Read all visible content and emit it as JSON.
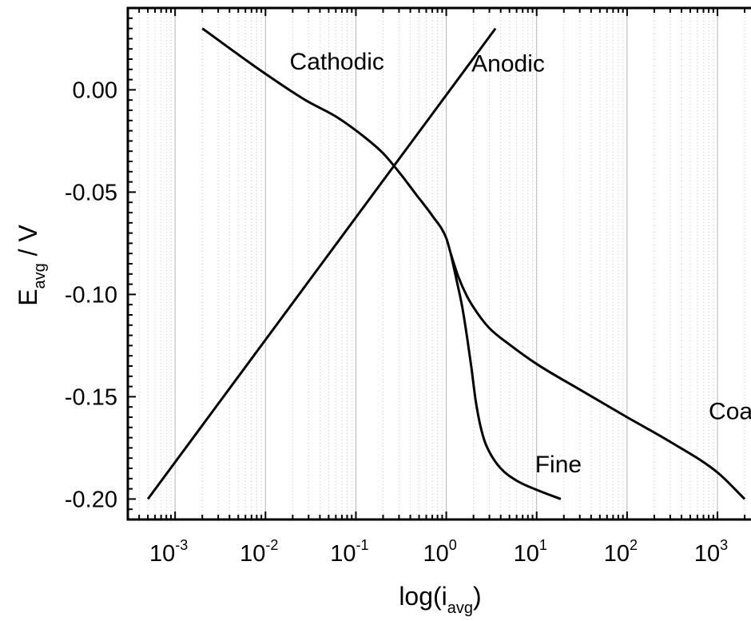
{
  "chart_data": {
    "type": "line",
    "xscale": "log",
    "xlim": [
      0.0003,
      3000
    ],
    "ylim": [
      -0.21,
      0.04
    ],
    "grid": "vertical, major solid and minor dotted",
    "x_major_ticks": [
      {
        "value": 0.001,
        "base": "10",
        "exp": "-3"
      },
      {
        "value": 0.01,
        "base": "10",
        "exp": "-2"
      },
      {
        "value": 0.1,
        "base": "10",
        "exp": "-1"
      },
      {
        "value": 1,
        "base": "10",
        "exp": "0"
      },
      {
        "value": 10,
        "base": "10",
        "exp": "1"
      },
      {
        "value": 100,
        "base": "10",
        "exp": "2"
      },
      {
        "value": 1000,
        "base": "10",
        "exp": "3"
      }
    ],
    "y_ticks": [
      {
        "value": 0.0,
        "label": "0.00"
      },
      {
        "value": -0.05,
        "label": "-0.05"
      },
      {
        "value": -0.1,
        "label": "-0.10"
      },
      {
        "value": -0.15,
        "label": "-0.15"
      },
      {
        "value": -0.2,
        "label": "-0.20"
      }
    ],
    "xlabel": {
      "main": "log(i",
      "sub": "avg",
      "end": ")"
    },
    "ylabel": {
      "main": "E",
      "sub": "avg",
      "end": " / V"
    },
    "series": [
      {
        "name": "Anodic",
        "label_at": [
          1.9,
          0.009
        ],
        "x": [
          0.0005,
          3.5
        ],
        "y": [
          -0.2,
          0.03
        ]
      },
      {
        "name": "Cathodic",
        "label_at": [
          0.0185,
          0.01
        ],
        "x": [
          0.002,
          0.0095,
          0.0276,
          0.0625,
          0.128,
          0.2,
          0.31,
          0.47,
          0.7,
          1.0,
          1.12
        ],
        "y": [
          0.03,
          0.0085,
          -0.005,
          -0.0135,
          -0.0235,
          -0.031,
          -0.041,
          -0.0515,
          -0.0615,
          -0.0725,
          -0.08
        ]
      },
      {
        "name": "Coarse",
        "label_at": [
          800,
          -0.161
        ],
        "x": [
          1.12,
          1.35,
          1.7,
          2.2,
          3.0,
          5.0,
          10,
          30,
          100,
          300,
          1000,
          2000
        ],
        "y": [
          -0.08,
          -0.091,
          -0.101,
          -0.109,
          -0.1165,
          -0.1245,
          -0.134,
          -0.1465,
          -0.16,
          -0.172,
          -0.187,
          -0.2
        ]
      },
      {
        "name": "Fine",
        "label_at": [
          9.6,
          -0.187
        ],
        "x": [
          1.12,
          1.3,
          1.5,
          1.7,
          1.9,
          2.1,
          2.3,
          2.6,
          3.0,
          4.0,
          6.0,
          10,
          18.5
        ],
        "y": [
          -0.08,
          -0.093,
          -0.106,
          -0.121,
          -0.136,
          -0.151,
          -0.161,
          -0.1705,
          -0.177,
          -0.185,
          -0.191,
          -0.1955,
          -0.2
        ]
      }
    ]
  }
}
